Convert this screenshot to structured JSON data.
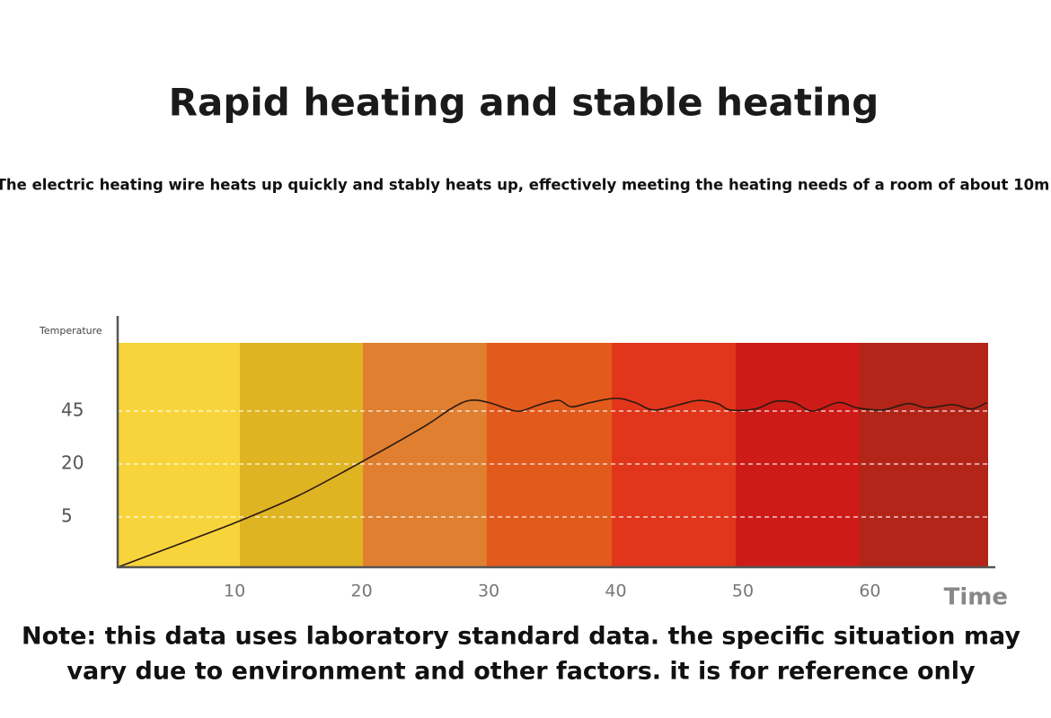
{
  "title": "Rapid heating and stable heating",
  "subtitle": "The electric heating wire heats up quickly and stably heats up, effectively meeting the heating needs of a room of about 10m",
  "note": [
    "Note: this data uses laboratory standard data. the specific situation may",
    "vary due to environment and other factors. it is for reference only"
  ],
  "chart_data": {
    "type": "line",
    "y_label": "Temperature",
    "x_label": "Time",
    "yscale": "piecewise",
    "x": [
      0.8,
      5,
      10,
      15,
      20,
      25,
      27,
      28.5,
      30,
      31.5,
      32.5,
      34,
      35.5,
      36.5,
      38,
      40,
      41.5,
      43,
      45,
      46.5,
      48,
      49,
      51,
      52.5,
      54,
      55.5,
      57.5,
      59,
      61,
      63,
      64.5,
      66.5,
      68,
      69.2
    ],
    "series": [
      {
        "name": "Temperature",
        "color": "#2a1a10",
        "values": [
          0,
          2,
          4.4,
          11,
          21,
          38,
          46,
          50,
          49,
          46,
          45,
          48,
          50,
          47,
          49,
          51,
          49,
          45.5,
          48,
          50,
          48.5,
          45.5,
          46,
          49.5,
          49,
          45,
          49,
          46.5,
          45.5,
          48.5,
          46.5,
          48,
          46,
          49
        ]
      }
    ],
    "xlim": [
      0.8,
      69.3
    ],
    "xticks": [
      10,
      20,
      30,
      40,
      50,
      60
    ],
    "ylim": [
      0,
      77
    ],
    "yticks": [
      5,
      20,
      45
    ],
    "grid": true
  }
}
